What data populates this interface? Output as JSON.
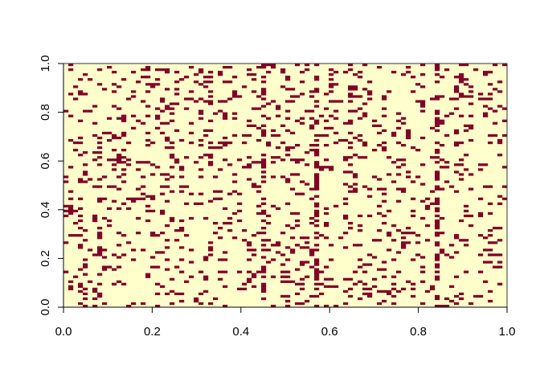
{
  "chart_data": {
    "type": "heatmap",
    "title": "",
    "xlabel": "",
    "ylabel": "",
    "xlim": [
      0,
      1
    ],
    "ylim": [
      0,
      1
    ],
    "x_ticks": [
      "0.0",
      "0.2",
      "0.4",
      "0.6",
      "0.8",
      "1.0"
    ],
    "y_ticks": [
      "0.0",
      "0.2",
      "0.4",
      "0.6",
      "0.8",
      "1.0"
    ],
    "x_tick_values": [
      0,
      0.2,
      0.4,
      0.6,
      0.8,
      1.0
    ],
    "y_tick_values": [
      0,
      0.2,
      0.4,
      0.6,
      0.8,
      1.0
    ],
    "grid": false,
    "legend": "none",
    "value_type": "binary",
    "colors": {
      "low": "#FFFFCC",
      "high": "#800026"
    },
    "approx_fill_fraction_high": 0.12,
    "dense_columns_x": [
      0.45,
      0.57,
      0.84
    ]
  }
}
